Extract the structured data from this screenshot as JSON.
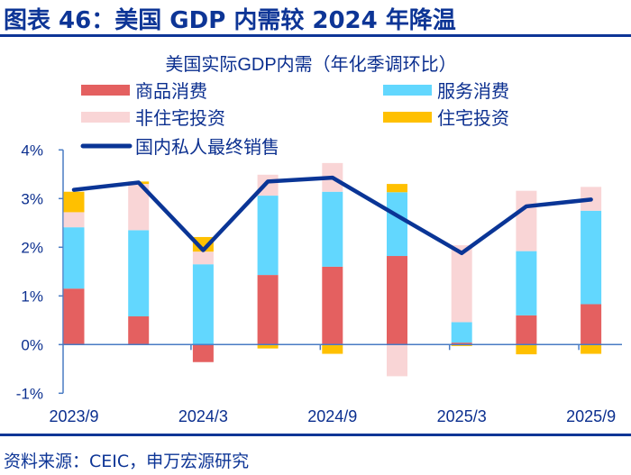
{
  "header": {
    "title": "图表 46：美国 GDP 内需较 2024 年降温"
  },
  "footer": {
    "source": "资料来源：CEIC，申万宏源研究"
  },
  "chart_data": {
    "type": "bar",
    "stacked": true,
    "title": "美国实际GDP内需（年化季调环比）",
    "categories": [
      "2023/9",
      "",
      "2024/3",
      "",
      "2024/9",
      "",
      "2025/3",
      "",
      "2025/9"
    ],
    "ylim": [
      -1,
      4
    ],
    "yticks": [
      "-1%",
      "0%",
      "1%",
      "2%",
      "3%",
      "4%"
    ],
    "ytick_values": [
      -1,
      0,
      1,
      2,
      3,
      4
    ],
    "grid": false,
    "legend_position": "top",
    "series": [
      {
        "name": "商品消费",
        "kind": "bar",
        "color": "#e46060",
        "values": [
          1.15,
          0.58,
          -0.36,
          1.43,
          1.6,
          1.82,
          0.04,
          0.6,
          0.83
        ]
      },
      {
        "name": "服务消费",
        "kind": "bar",
        "color": "#62d7fe",
        "values": [
          1.26,
          1.77,
          1.65,
          1.63,
          1.54,
          1.31,
          0.42,
          1.32,
          1.92
        ]
      },
      {
        "name": "非住宅投资",
        "kind": "bar",
        "color": "#f9d5d6",
        "values": [
          0.31,
          0.95,
          0.26,
          0.43,
          0.59,
          -0.65,
          1.58,
          1.24,
          0.49
        ]
      },
      {
        "name": "住宅投资",
        "kind": "bar",
        "color": "#ffc000",
        "values": [
          0.42,
          0.05,
          0.3,
          -0.08,
          -0.19,
          0.17,
          -0.03,
          -0.2,
          -0.19
        ]
      },
      {
        "name": "国内私人最终销售",
        "kind": "line",
        "color": "#0a3596",
        "values": [
          3.18,
          3.33,
          1.94,
          3.35,
          3.43,
          2.65,
          1.88,
          2.84,
          2.98
        ]
      }
    ]
  }
}
